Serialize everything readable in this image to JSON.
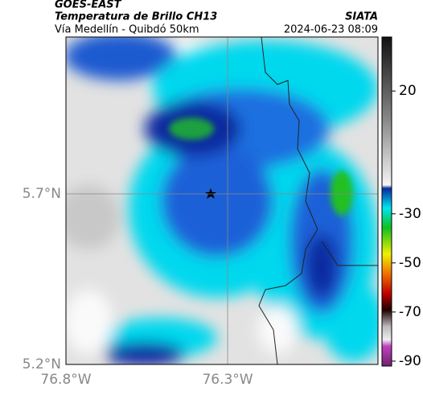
{
  "header": {
    "source": "GOES-EAST",
    "product": "Temperatura de Brillo CH13",
    "org": "SIATA",
    "route": "Vía Medellín - Quibdó 50km",
    "time": "2024-06-23 08:09"
  },
  "map": {
    "xlim": [
      -76.8,
      -75.835
    ],
    "ylim": [
      5.2,
      6.16
    ],
    "xticks": [
      {
        "value": -76.8,
        "label": "76.8°W"
      },
      {
        "value": -76.3,
        "label": "76.3°W"
      }
    ],
    "yticks": [
      {
        "value": 5.7,
        "label": "5.7°N"
      },
      {
        "value": 5.2,
        "label": "5.2°N"
      }
    ]
  },
  "colorbar": {
    "range": [
      -92,
      42
    ],
    "ticks": [
      20,
      -30,
      -50,
      -70,
      -90
    ]
  }
}
